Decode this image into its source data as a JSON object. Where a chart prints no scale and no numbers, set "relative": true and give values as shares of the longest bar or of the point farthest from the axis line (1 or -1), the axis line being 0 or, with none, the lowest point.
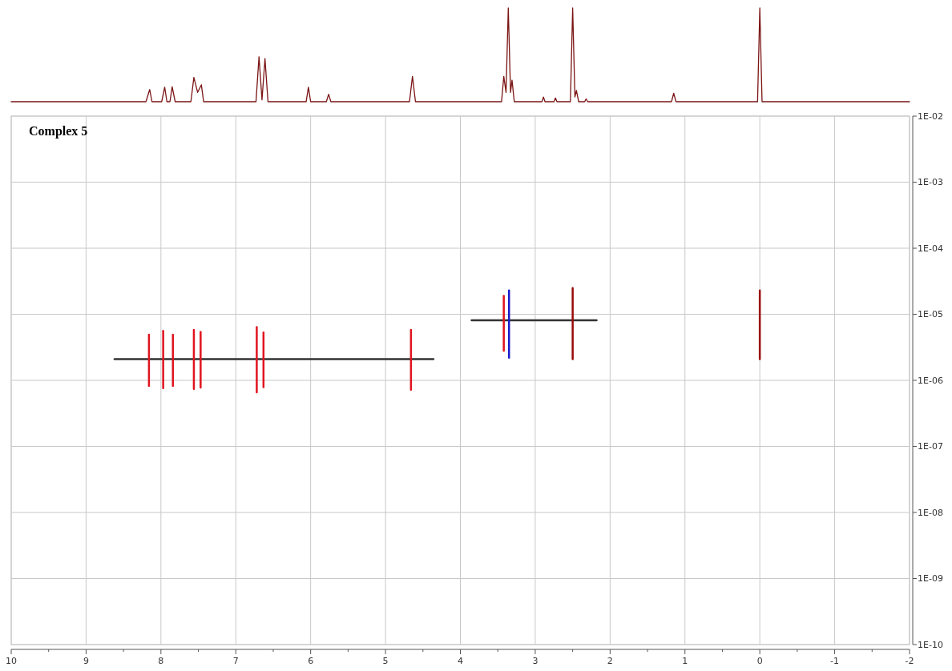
{
  "chart_data": [
    {
      "type": "line",
      "relative": true,
      "xlim": [
        10,
        -2
      ],
      "grid": false,
      "series": [
        {
          "color": "#7b1414",
          "x": [
            10,
            8.2,
            8.15,
            8.12,
            7.99,
            7.95,
            7.92,
            7.88,
            7.85,
            7.81,
            7.6,
            7.56,
            7.51,
            7.46,
            7.43,
            6.73,
            6.69,
            6.65,
            6.61,
            6.57,
            6.06,
            6.03,
            6.0,
            5.79,
            5.76,
            5.73,
            4.68,
            4.64,
            4.6,
            3.45,
            3.42,
            3.39,
            3.36,
            3.33,
            3.31,
            3.28,
            2.91,
            2.89,
            2.87,
            2.75,
            2.73,
            2.71,
            2.53,
            2.5,
            2.47,
            2.45,
            2.42,
            2.34,
            2.32,
            2.3,
            1.18,
            1.15,
            1.12,
            0.03,
            0.0,
            -0.03,
            -2
          ],
          "values": [
            0,
            0,
            0.13,
            0,
            0,
            0.155,
            0,
            0,
            0.16,
            0,
            0,
            0.26,
            0.1,
            0.18,
            0,
            0,
            0.48,
            0.02,
            0.46,
            0,
            0,
            0.155,
            0,
            0,
            0.08,
            0,
            0,
            0.27,
            0,
            0,
            0.27,
            0.1,
            1,
            0.1,
            0.23,
            0,
            0,
            0.05,
            0,
            0,
            0.04,
            0,
            0,
            1,
            0.05,
            0.12,
            0,
            0,
            0.03,
            0,
            0,
            0.09,
            0,
            0,
            1,
            0,
            0
          ]
        }
      ]
    },
    {
      "type": "line",
      "title": "Complex 5",
      "log": "y",
      "grid": true,
      "xlim": [
        10,
        -2
      ],
      "xticks": [
        10,
        9,
        8,
        7,
        6,
        5,
        4,
        3,
        2,
        1,
        0,
        -1,
        -2
      ],
      "ylim": [
        1e-10,
        0.01
      ],
      "yticks": [
        {
          "value": 1e-10,
          "label": "1E-10"
        },
        {
          "value": 1e-09,
          "label": "1E-09"
        },
        {
          "value": 1e-08,
          "label": "1E-08"
        },
        {
          "value": 1e-07,
          "label": "1E-07"
        },
        {
          "value": 1e-06,
          "label": "1E-06"
        },
        {
          "value": 1e-05,
          "label": "1E-05"
        },
        {
          "value": 0.0001,
          "label": "1E-04"
        },
        {
          "value": 0.001,
          "label": "1E-03"
        },
        {
          "value": 0.01,
          "label": "1E-02"
        }
      ],
      "series": [
        {
          "color": "#333333",
          "x": [
            8.62,
            4.36
          ],
          "values": [
            2.1e-06,
            2.1e-06
          ]
        },
        {
          "color": "#333333",
          "x": [
            3.85,
            2.18
          ],
          "values": [
            8.1e-06,
            8.1e-06
          ]
        },
        {
          "color": "#e0141e",
          "x": [
            8.16,
            8.16
          ],
          "values": [
            8.2e-07,
            4.9e-06
          ]
        },
        {
          "color": "#e0141e",
          "x": [
            7.97,
            7.97
          ],
          "values": [
            7.6e-07,
            5.6e-06
          ]
        },
        {
          "color": "#e0141e",
          "x": [
            7.84,
            7.84
          ],
          "values": [
            8.2e-07,
            4.9e-06
          ]
        },
        {
          "color": "#e0141e",
          "x": [
            7.56,
            7.56
          ],
          "values": [
            7.4e-07,
            5.8e-06
          ]
        },
        {
          "color": "#e0141e",
          "x": [
            7.47,
            7.47
          ],
          "values": [
            7.8e-07,
            5.4e-06
          ]
        },
        {
          "color": "#e0141e",
          "x": [
            6.72,
            6.72
          ],
          "values": [
            6.6e-07,
            6.4e-06
          ]
        },
        {
          "color": "#e0141e",
          "x": [
            6.63,
            6.63
          ],
          "values": [
            7.9e-07,
            5.3e-06
          ]
        },
        {
          "color": "#e0141e",
          "x": [
            4.66,
            4.66
          ],
          "values": [
            7.2e-07,
            5.8e-06
          ]
        },
        {
          "color": "#e0141e",
          "x": [
            3.42,
            3.42
          ],
          "values": [
            2.8e-06,
            1.9e-05
          ]
        },
        {
          "color": "#1a1acc",
          "x": [
            3.35,
            3.35
          ],
          "values": [
            2.2e-06,
            2.3e-05
          ]
        },
        {
          "color": "#9b0a0a",
          "x": [
            2.5,
            2.5
          ],
          "values": [
            2.1e-06,
            2.5e-05
          ]
        },
        {
          "color": "#9b0a0a",
          "x": [
            0.0,
            0.0
          ],
          "values": [
            2.1e-06,
            2.3e-05
          ]
        }
      ]
    }
  ]
}
